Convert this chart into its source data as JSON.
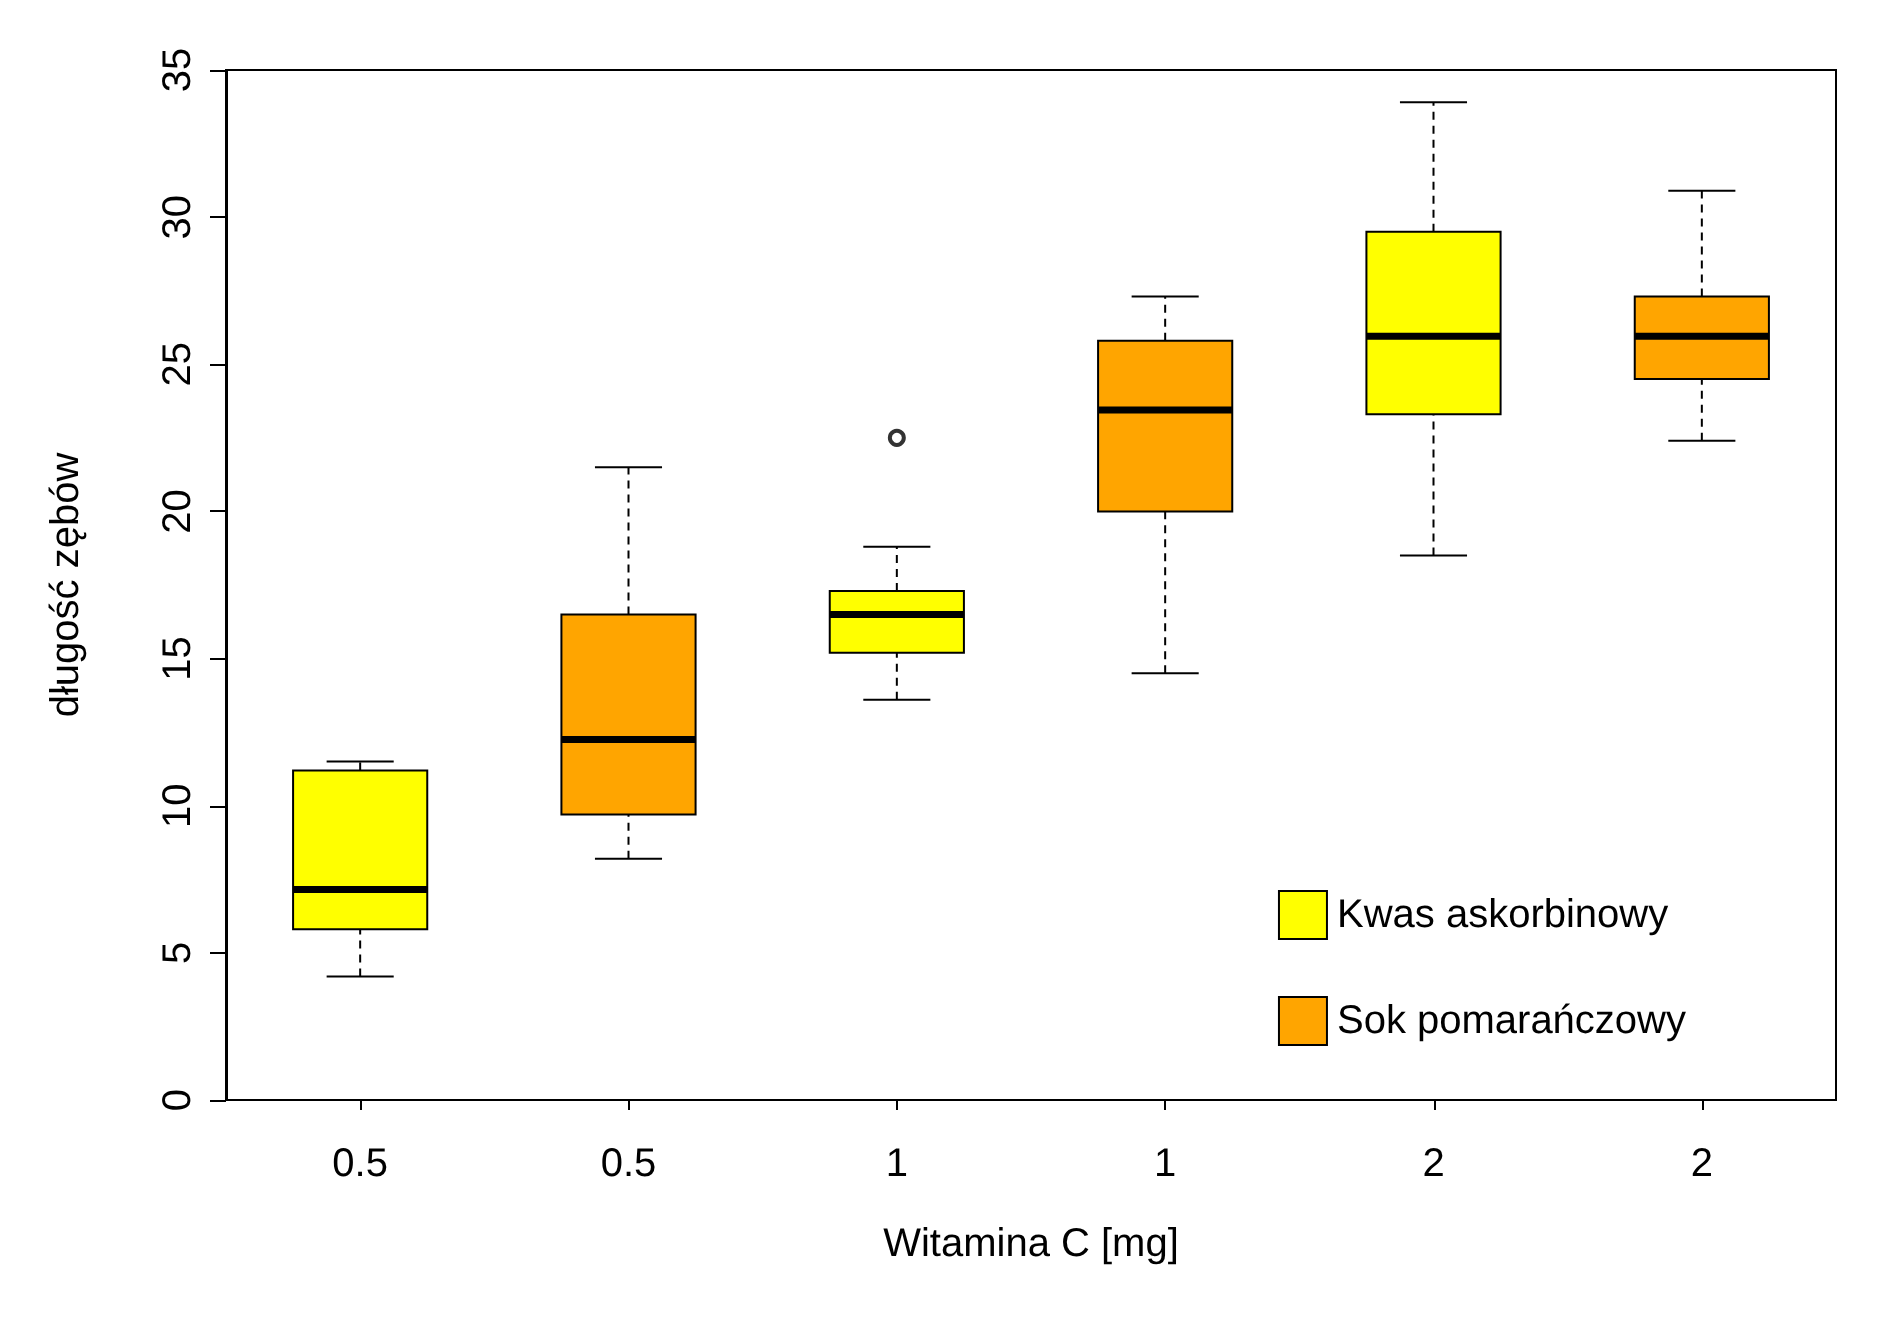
{
  "chart_data": {
    "type": "box",
    "xlabel": "Witamina C [mg]",
    "ylabel": "długość zębów",
    "categories": [
      "0.5",
      "0.5",
      "1",
      "1",
      "2",
      "2"
    ],
    "ylim": [
      0,
      35
    ],
    "yticks": [
      0,
      5,
      10,
      15,
      20,
      25,
      30,
      35
    ],
    "grid": false,
    "legend": "bottom right",
    "series": [
      {
        "name": "Kwas askorbinowy",
        "color": "#ffff00",
        "boxes": [
          {
            "low": 4.2,
            "q1": 5.8,
            "median": 7.15,
            "q3": 11.2,
            "high": 11.5
          },
          null,
          {
            "low": 13.6,
            "q1": 15.2,
            "median": 16.5,
            "q3": 17.3,
            "high": 18.8,
            "outliers": [
              22.5
            ]
          },
          null,
          {
            "low": 18.5,
            "q1": 23.3,
            "median": 25.95,
            "q3": 29.5,
            "high": 33.9
          },
          null
        ]
      },
      {
        "name": "Sok pomarańczowy",
        "color": "#ffa500",
        "boxes": [
          null,
          {
            "low": 8.2,
            "q1": 9.7,
            "median": 12.25,
            "q3": 16.5,
            "high": 21.5
          },
          null,
          {
            "low": 14.5,
            "q1": 20.0,
            "median": 23.45,
            "q3": 25.8,
            "high": 27.3
          },
          null,
          {
            "low": 22.4,
            "q1": 24.5,
            "median": 25.95,
            "q3": 27.3,
            "high": 30.9
          }
        ]
      }
    ]
  }
}
